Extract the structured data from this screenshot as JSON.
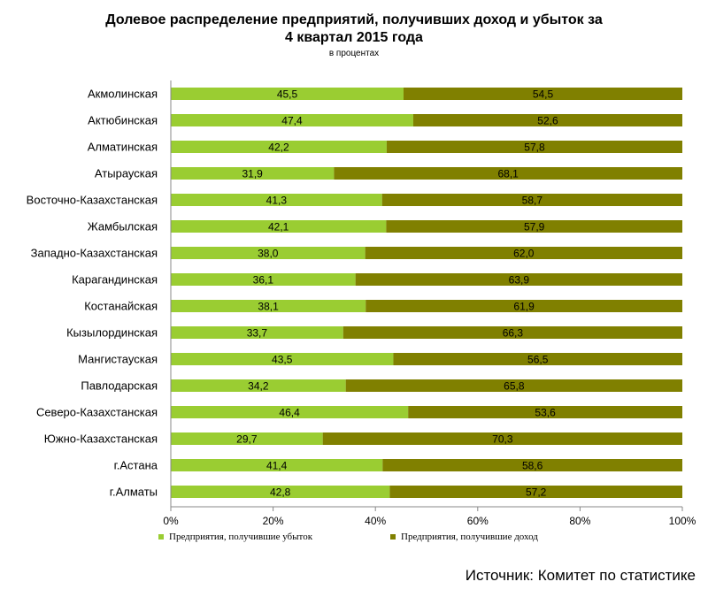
{
  "chart_data": {
    "type": "bar",
    "orientation": "horizontal",
    "stacked": "percent",
    "title_line1": "Долевое распределение предприятий, получивших доход и убыток за",
    "title_line2": "4 квартал 2015 года",
    "subtitle": "в процентах",
    "categories": [
      "Акмолинская",
      "Актюбинская",
      "Алматинская",
      "Атырауская",
      "Восточно-Казахстанская",
      "Жамбылская",
      "Западно-Казахстанская",
      "Карагандинская",
      "Костанайская",
      "Кызылординская",
      "Мангистауская",
      "Павлодарская",
      "Северо-Казахстанская",
      "Южно-Казахстанская",
      "г.Астана",
      "г.Алматы"
    ],
    "series": [
      {
        "name": "Предприятия, получившие убыток",
        "color": "#9acd32",
        "values": [
          45.5,
          47.4,
          42.2,
          31.9,
          41.3,
          42.1,
          38.0,
          36.1,
          38.1,
          33.7,
          43.5,
          34.2,
          46.4,
          29.7,
          41.4,
          42.8
        ],
        "labels": [
          "45,5",
          "47,4",
          "42,2",
          "31,9",
          "41,3",
          "42,1",
          "38,0",
          "36,1",
          "38,1",
          "33,7",
          "43,5",
          "34,2",
          "46,4",
          "29,7",
          "41,4",
          "42,8"
        ]
      },
      {
        "name": "Предприятия, получившие доход",
        "color": "#808000",
        "values": [
          54.5,
          52.6,
          57.8,
          68.1,
          58.7,
          57.9,
          62.0,
          63.9,
          61.9,
          66.3,
          56.5,
          65.8,
          53.6,
          70.3,
          58.6,
          57.2
        ],
        "labels": [
          "54,5",
          "52,6",
          "57,8",
          "68,1",
          "58,7",
          "57,9",
          "62,0",
          "63,9",
          "61,9",
          "66,3",
          "56,5",
          "65,8",
          "53,6",
          "70,3",
          "58,6",
          "57,2"
        ]
      }
    ],
    "x_ticks": [
      "0%",
      "20%",
      "40%",
      "60%",
      "80%",
      "100%"
    ],
    "xlim": [
      0,
      100
    ],
    "legend_position": "bottom"
  },
  "source": "Источник: Комитет по статистике"
}
